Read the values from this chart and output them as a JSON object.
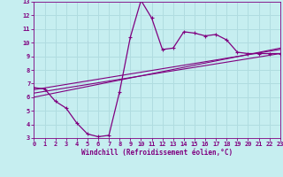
{
  "xlabel": "Windchill (Refroidissement éolien,°C)",
  "xlim": [
    0,
    23
  ],
  "ylim": [
    3,
    13
  ],
  "xticks": [
    0,
    1,
    2,
    3,
    4,
    5,
    6,
    7,
    8,
    9,
    10,
    11,
    12,
    13,
    14,
    15,
    16,
    17,
    18,
    19,
    20,
    21,
    22,
    23
  ],
  "yticks": [
    3,
    4,
    5,
    6,
    7,
    8,
    9,
    10,
    11,
    12,
    13
  ],
  "bg_color": "#c6eef0",
  "line_color": "#800080",
  "grid_color": "#b0dce0",
  "curve1_x": [
    0,
    1,
    2,
    3,
    4,
    5,
    6,
    7,
    8,
    9,
    10,
    11,
    12,
    13,
    14,
    15,
    16,
    17,
    18,
    19,
    20,
    21,
    22,
    23
  ],
  "curve1_y": [
    6.7,
    6.6,
    5.7,
    5.2,
    4.1,
    3.3,
    3.1,
    3.2,
    6.4,
    10.4,
    13.1,
    11.8,
    9.5,
    9.6,
    10.8,
    10.7,
    10.5,
    10.6,
    10.2,
    9.3,
    9.2,
    9.2,
    9.2,
    9.2
  ],
  "curve2_x": [
    0,
    23
  ],
  "curve2_y": [
    6.55,
    9.5
  ],
  "curve3_x": [
    0,
    23
  ],
  "curve3_y": [
    6.3,
    9.2
  ],
  "curve4_x": [
    0,
    23
  ],
  "curve4_y": [
    6.0,
    9.6
  ],
  "tick_fontsize": 5,
  "label_fontsize": 5.5
}
